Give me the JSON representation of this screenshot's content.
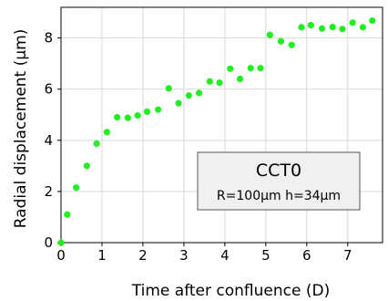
{
  "chart_data": {
    "type": "scatter",
    "xlabel": "Time after confluence (D)",
    "ylabel": "Radial displacement (μm)",
    "xlim": [
      0,
      7.85
    ],
    "ylim": [
      0,
      9.2
    ],
    "xticks": [
      0,
      1,
      2,
      3,
      4,
      5,
      6,
      7
    ],
    "yticks": [
      0,
      2,
      4,
      6,
      8
    ],
    "grid": true,
    "legend_placement": "lower-right",
    "series": [
      {
        "name": "CCT0",
        "color": "#22ee22",
        "points": [
          [
            0.0,
            0.0
          ],
          [
            0.15,
            1.1
          ],
          [
            0.37,
            2.15
          ],
          [
            0.63,
            3.0
          ],
          [
            0.87,
            3.87
          ],
          [
            1.12,
            4.32
          ],
          [
            1.37,
            4.9
          ],
          [
            1.63,
            4.88
          ],
          [
            1.87,
            4.97
          ],
          [
            2.1,
            5.12
          ],
          [
            2.37,
            5.2
          ],
          [
            2.63,
            6.03
          ],
          [
            2.87,
            5.45
          ],
          [
            3.12,
            5.75
          ],
          [
            3.37,
            5.85
          ],
          [
            3.63,
            6.3
          ],
          [
            3.87,
            6.25
          ],
          [
            4.13,
            6.8
          ],
          [
            4.37,
            6.4
          ],
          [
            4.63,
            6.82
          ],
          [
            4.87,
            6.82
          ],
          [
            5.1,
            8.12
          ],
          [
            5.37,
            7.87
          ],
          [
            5.63,
            7.73
          ],
          [
            5.87,
            8.42
          ],
          [
            6.1,
            8.5
          ],
          [
            6.37,
            8.37
          ],
          [
            6.63,
            8.43
          ],
          [
            6.87,
            8.35
          ],
          [
            7.12,
            8.6
          ],
          [
            7.37,
            8.42
          ],
          [
            7.6,
            8.68
          ]
        ]
      }
    ],
    "legend": {
      "title": "CCT0",
      "subtitle": "R=100μm h=34μm"
    }
  }
}
